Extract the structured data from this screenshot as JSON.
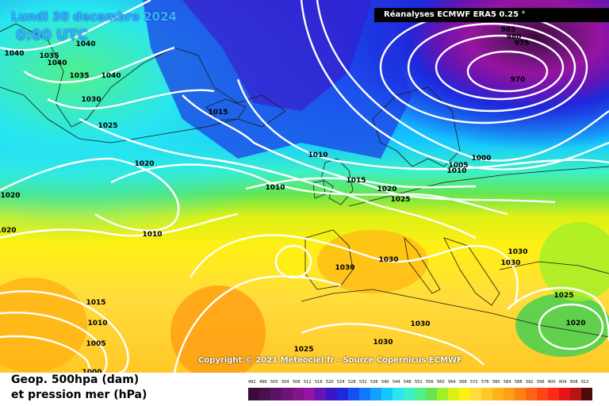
{
  "header": {
    "date": "Lundi 30 decembre 2024",
    "time": "0:00 UTC"
  },
  "source_label": "Réanalyses ECMWF ERA5 0.25 °",
  "copyright": "Copyright © 2021 Meteociel.fr - Source Copernicus ECMWF",
  "legend": {
    "title_line1": "Geop. 500hpa (dam)",
    "title_line2": "et pression mer (hPa)",
    "scale": [
      {
        "label": "492",
        "color": "#3c0a3c"
      },
      {
        "label": "496",
        "color": "#4b0f50"
      },
      {
        "label": "500",
        "color": "#5a1464"
      },
      {
        "label": "504",
        "color": "#6e1478"
      },
      {
        "label": "508",
        "color": "#82148c"
      },
      {
        "label": "512",
        "color": "#9614a0"
      },
      {
        "label": "516",
        "color": "#6414b4"
      },
      {
        "label": "520",
        "color": "#3c14c8"
      },
      {
        "label": "524",
        "color": "#1e28dc"
      },
      {
        "label": "528",
        "color": "#1450f0"
      },
      {
        "label": "532",
        "color": "#1478ff"
      },
      {
        "label": "536",
        "color": "#14a0ff"
      },
      {
        "label": "540",
        "color": "#14c8ff"
      },
      {
        "label": "544",
        "color": "#28e6f0"
      },
      {
        "label": "548",
        "color": "#3cf0c8"
      },
      {
        "label": "552",
        "color": "#50f08c"
      },
      {
        "label": "556",
        "color": "#64e650"
      },
      {
        "label": "560",
        "color": "#a0f028"
      },
      {
        "label": "564",
        "color": "#dcf014"
      },
      {
        "label": "568",
        "color": "#fff014"
      },
      {
        "label": "572",
        "color": "#ffdc3c"
      },
      {
        "label": "576",
        "color": "#ffc828"
      },
      {
        "label": "580",
        "color": "#ffb414"
      },
      {
        "label": "584",
        "color": "#ffa014"
      },
      {
        "label": "588",
        "color": "#ff8214"
      },
      {
        "label": "592",
        "color": "#ff6414"
      },
      {
        "label": "596",
        "color": "#ff4614"
      },
      {
        "label": "600",
        "color": "#ff2814"
      },
      {
        "label": "604",
        "color": "#e61414"
      },
      {
        "label": "608",
        "color": "#b41414"
      },
      {
        "label": "612",
        "color": "#500a0a"
      }
    ]
  },
  "pressure_labels": [
    "1040",
    "1035",
    "1040",
    "1040",
    "1035",
    "1040",
    "1030",
    "1025",
    "1015",
    "1020",
    "1020",
    "1020",
    "1010",
    "1010",
    "1010",
    "1015",
    "1020",
    "1025",
    "1005",
    "1000",
    "1010",
    "985",
    "980",
    "975",
    "970",
    "1030",
    "1030",
    "1030",
    "1030",
    "1025",
    "1020",
    "1030",
    "1030",
    "1015",
    "1010",
    "1005",
    "1000",
    "1025"
  ]
}
